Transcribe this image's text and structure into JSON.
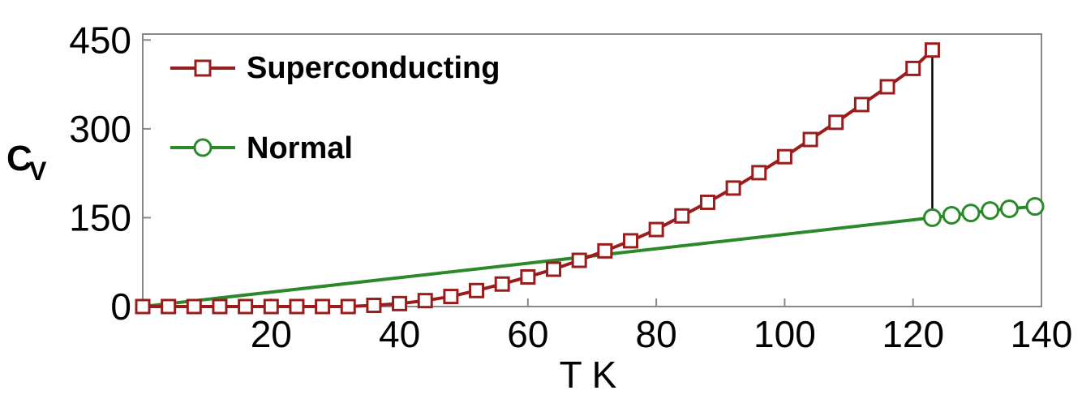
{
  "chart_data": {
    "type": "line",
    "xlabel": "T K",
    "ylabel": {
      "main": "C",
      "sub": "V"
    },
    "xlim": [
      0,
      140
    ],
    "ylim": [
      0,
      460
    ],
    "xticks": [
      "20",
      "40",
      "60",
      "80",
      "100",
      "120",
      "140"
    ],
    "yticks": [
      "0",
      "150",
      "300",
      "450"
    ],
    "grid": false,
    "legend_position": "top-left",
    "series": [
      {
        "name": "Superconducting",
        "color": "#9b1c1c",
        "marker": "square",
        "x": [
          0,
          4,
          8,
          12,
          16,
          20,
          24,
          28,
          32,
          36,
          40,
          44,
          48,
          52,
          56,
          60,
          64,
          68,
          72,
          76,
          80,
          84,
          88,
          92,
          96,
          100,
          104,
          108,
          112,
          116,
          120,
          123
        ],
        "y": [
          0,
          0,
          0,
          0,
          0,
          0,
          0,
          0,
          0,
          2,
          5,
          10,
          17,
          27,
          38,
          50,
          63,
          78,
          94,
          111,
          130,
          153,
          176,
          200,
          226,
          253,
          282,
          311,
          341,
          371,
          402,
          433
        ]
      },
      {
        "name": "Normal",
        "color": "#2a8a2a",
        "marker": "circle",
        "x": [
          0,
          123,
          126,
          129,
          132,
          135,
          139
        ],
        "y": [
          0,
          150,
          154,
          158,
          162,
          165,
          169
        ]
      }
    ],
    "annotations": [
      {
        "type": "jump-line",
        "x": 123,
        "y_from": 150,
        "y_to": 433,
        "color": "#000000"
      }
    ]
  }
}
